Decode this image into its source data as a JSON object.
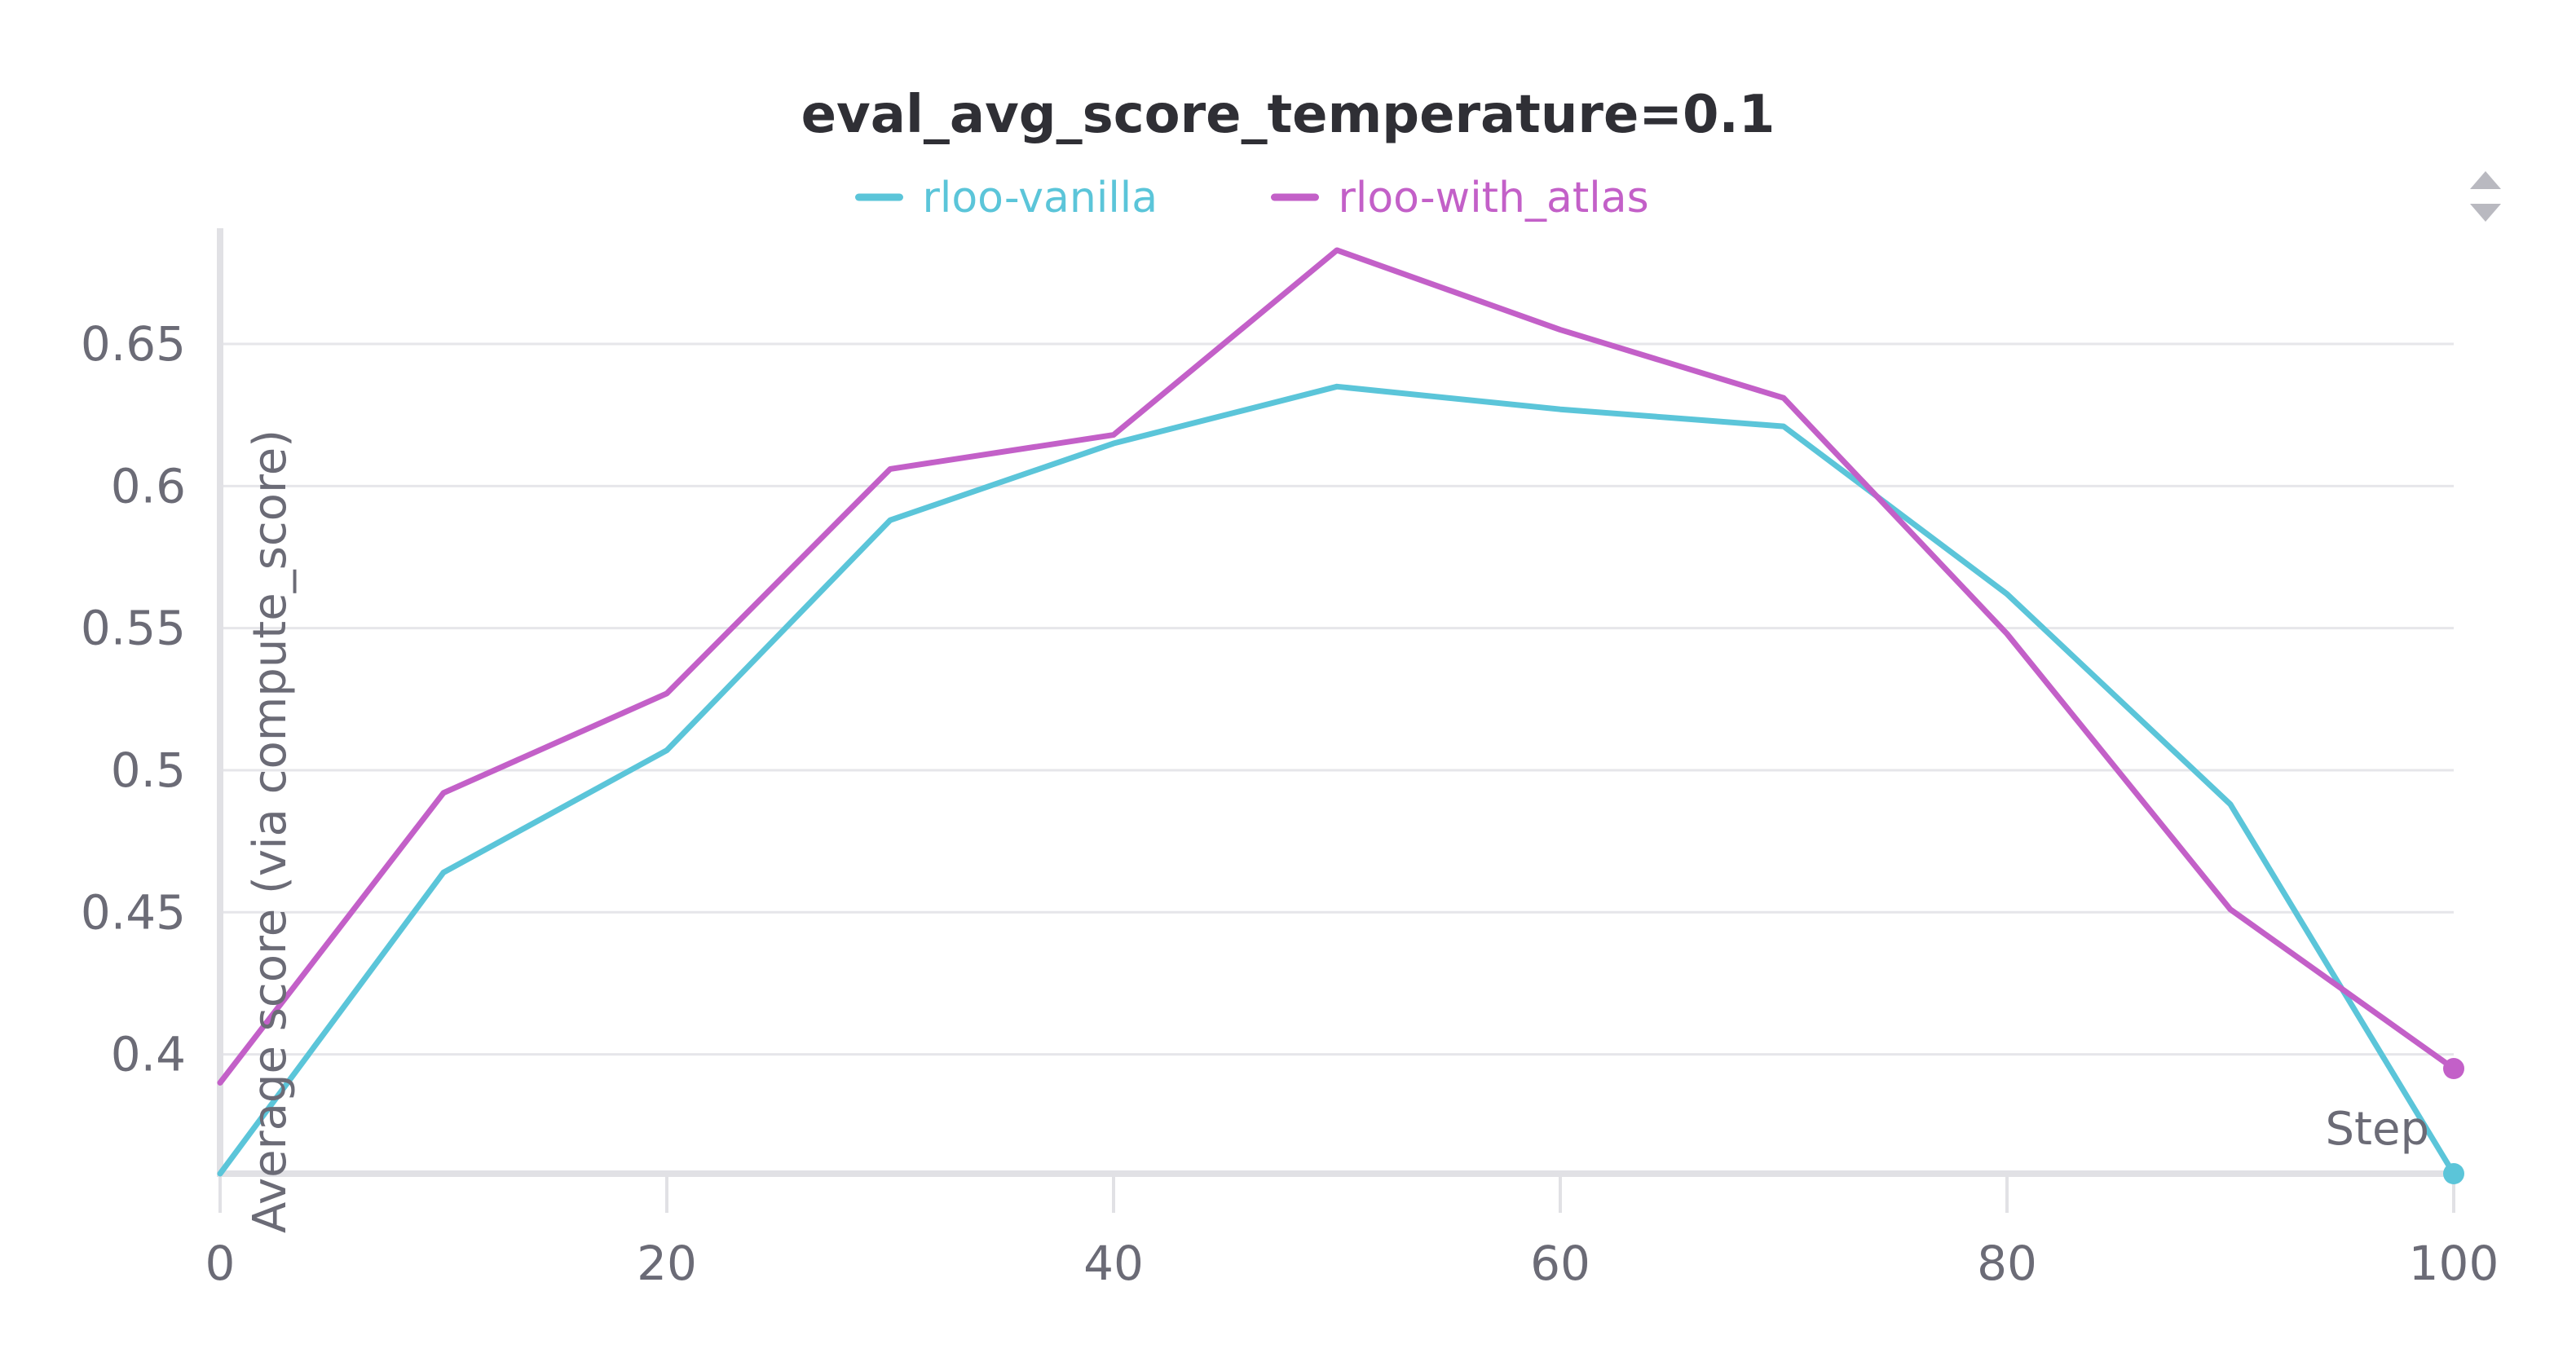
{
  "chart_data": {
    "type": "line",
    "title": "eval_avg_score_temperature=0.1",
    "xlabel": "Step",
    "ylabel": "Average score (via compute_score)",
    "x": [
      0,
      10,
      20,
      30,
      40,
      50,
      60,
      70,
      80,
      90,
      100
    ],
    "xticks": [
      "0",
      "20",
      "40",
      "60",
      "80",
      "100"
    ],
    "yticks": [
      "0.4",
      "0.45",
      "0.5",
      "0.55",
      "0.6",
      "0.65"
    ],
    "xlim": [
      0,
      100
    ],
    "ylim": [
      0.358,
      0.685
    ],
    "grid": true,
    "legend_position": "top-center",
    "series": [
      {
        "name": "rloo-vanilla",
        "color": "#5bc5d9",
        "values": [
          0.358,
          0.464,
          0.507,
          0.588,
          0.615,
          0.635,
          0.627,
          0.621,
          0.562,
          0.488,
          0.358
        ]
      },
      {
        "name": "rloo-with_atlas",
        "color": "#c360c8",
        "values": [
          0.39,
          0.492,
          0.527,
          0.606,
          0.618,
          0.683,
          0.655,
          0.631,
          0.548,
          0.451,
          0.395
        ]
      }
    ]
  }
}
